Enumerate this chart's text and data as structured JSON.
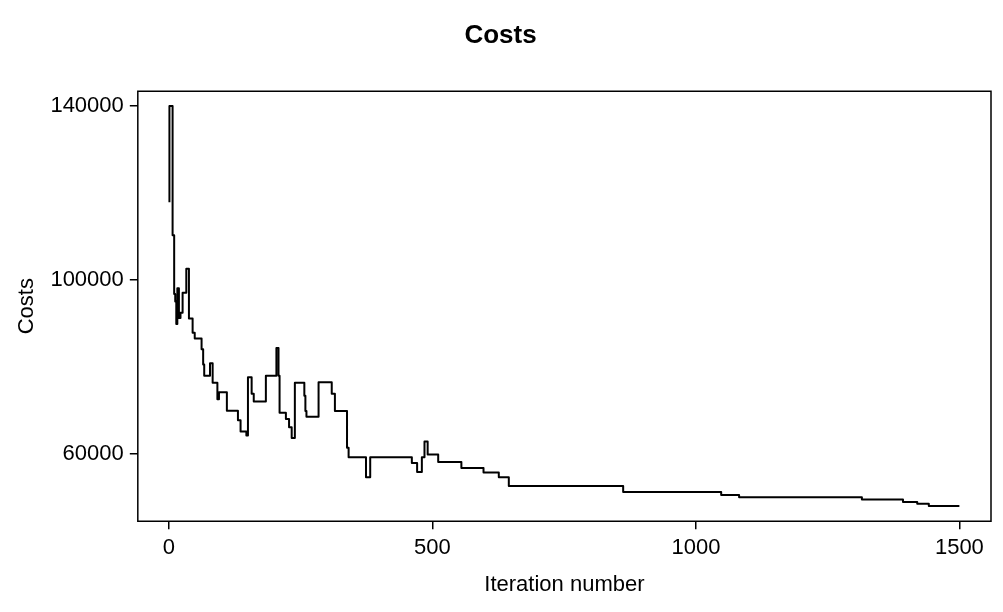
{
  "chart_data": {
    "type": "step",
    "title": "Costs",
    "xlabel": "Iteration number",
    "ylabel": "Costs",
    "x": [
      1,
      7,
      10,
      12,
      14,
      16,
      19,
      22,
      26,
      33,
      38,
      45,
      49,
      62,
      65,
      67,
      78,
      83,
      92,
      95,
      110,
      131,
      136,
      147,
      150,
      157,
      161,
      184,
      204,
      208,
      210,
      222,
      228,
      233,
      239,
      257,
      259,
      261,
      284,
      309,
      315,
      338,
      341,
      374,
      382,
      461,
      471,
      480,
      485,
      491,
      511,
      555,
      597,
      626,
      645,
      862,
      1048,
      1082,
      1315,
      1393,
      1420,
      1442,
      1487,
      1500
    ],
    "values": [
      117800,
      139900,
      110200,
      96700,
      95000,
      89800,
      98000,
      91200,
      92400,
      97000,
      102500,
      91100,
      87800,
      86500,
      84000,
      80500,
      77900,
      80800,
      76300,
      72500,
      74100,
      69900,
      67700,
      65100,
      64200,
      77600,
      73800,
      72000,
      77900,
      84300,
      77900,
      69400,
      68000,
      66100,
      63600,
      76300,
      73300,
      69800,
      68500,
      76400,
      73800,
      69800,
      61400,
      59200,
      54600,
      59200,
      57900,
      55800,
      59200,
      62800,
      59800,
      58100,
      56700,
      55700,
      54600,
      52600,
      51200,
      50500,
      50000,
      49500,
      48900,
      48500,
      48000,
      48000
    ],
    "color": "#000000",
    "xlim": [
      -59,
      1560
    ],
    "xticks": [
      0,
      500,
      1000,
      1500
    ],
    "ylim": [
      44500,
      143300
    ],
    "yticks": [
      60000,
      100000,
      140000
    ],
    "grid": false,
    "legend": false,
    "marker": "none",
    "line_style": "solid"
  }
}
